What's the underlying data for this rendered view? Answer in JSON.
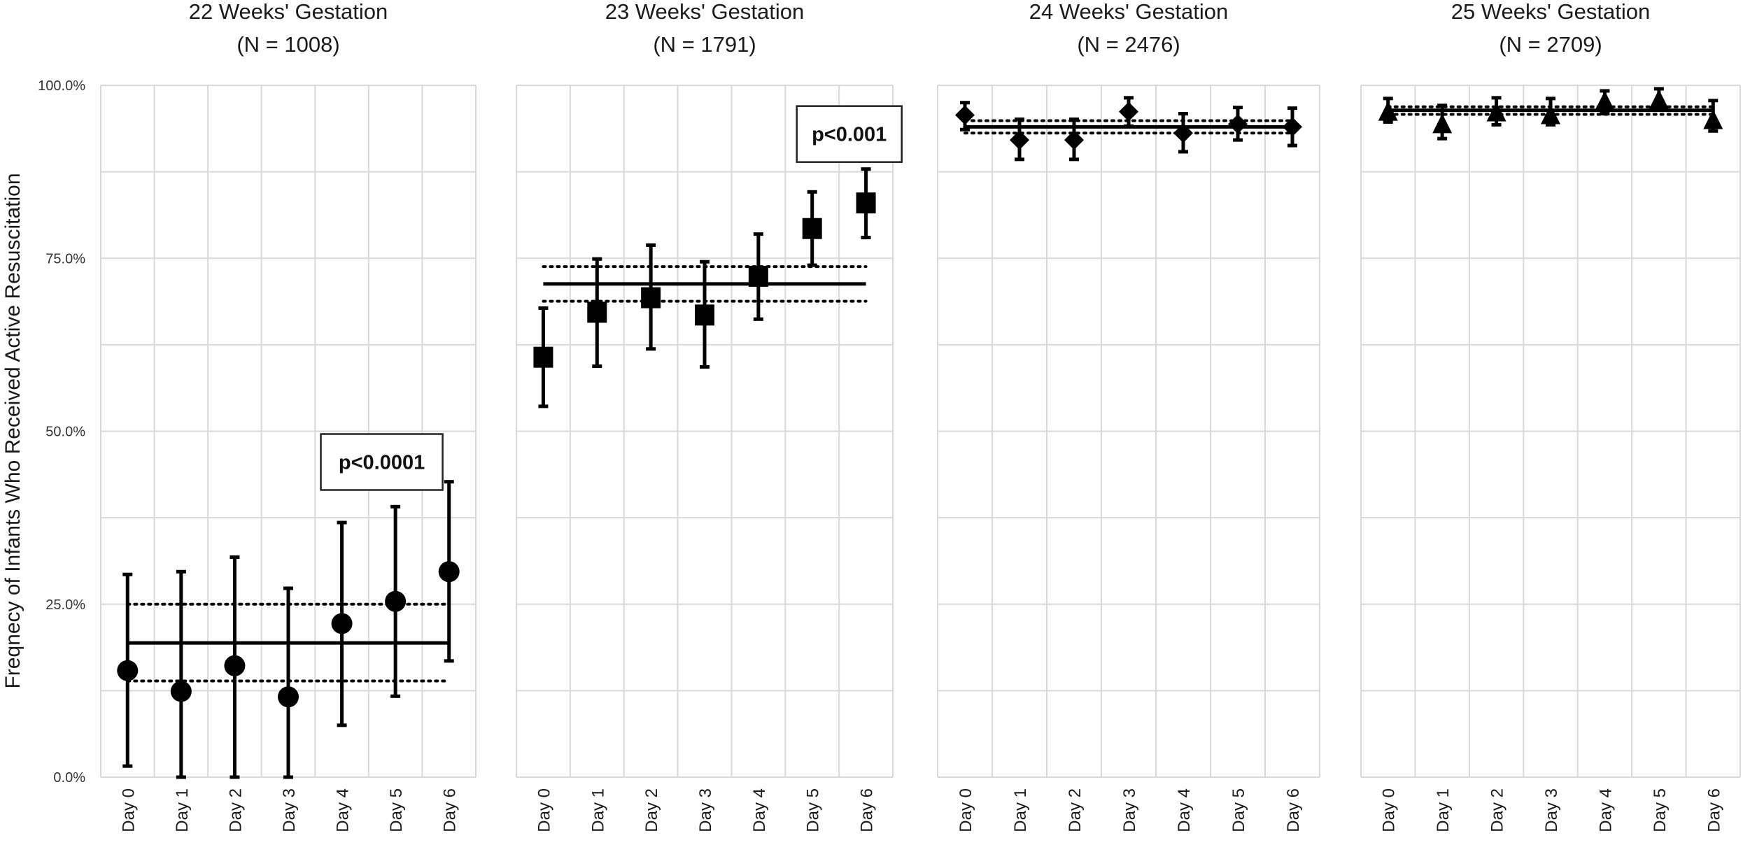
{
  "chart_data": {
    "type": "scatter",
    "description": "Point estimates with 95% CI error bars per day; solid line = overall mean, dotted lines = CI of mean",
    "ylabel": "Freqnecy of Infants Who Received Active Resuscitation",
    "ylim": [
      0,
      100
    ],
    "yticks": [
      "0.0%",
      "25.0%",
      "50.0%",
      "75.0%",
      "100.0%"
    ],
    "ytick_values": [
      0,
      25,
      50,
      75,
      100
    ],
    "minor_gridlines_step": 12.5,
    "grid": true,
    "categories": [
      "Day 0",
      "Day 1",
      "Day 2",
      "Day 3",
      "Day 4",
      "Day 5",
      "Day 6"
    ],
    "panels": [
      {
        "title": "22 Weeks' Gestation",
        "subtitle": "(N = 1008)",
        "marker": "circle",
        "values": [
          15.4,
          12.4,
          16.1,
          11.6,
          22.2,
          25.4,
          29.7
        ],
        "ci_low": [
          1.6,
          0.0,
          0.0,
          0.0,
          7.5,
          11.7,
          16.8
        ],
        "ci_high": [
          29.3,
          29.7,
          31.8,
          27.3,
          36.8,
          39.1,
          42.7
        ],
        "mean": 19.4,
        "mean_ci_low": 13.9,
        "mean_ci_high": 25.0,
        "annotation": "p<0.0001"
      },
      {
        "title": "23 Weeks' Gestation",
        "subtitle": "(N = 1791)",
        "marker": "square",
        "values": [
          60.7,
          67.2,
          69.3,
          66.8,
          72.4,
          79.3,
          83.0
        ],
        "ci_low": [
          53.6,
          59.4,
          61.9,
          59.3,
          66.2,
          74.0,
          78.0
        ],
        "ci_high": [
          67.8,
          74.9,
          76.9,
          74.5,
          78.5,
          84.6,
          87.9
        ],
        "mean": 71.3,
        "mean_ci_low": 68.8,
        "mean_ci_high": 73.8,
        "annotation": "p<0.001"
      },
      {
        "title": "24 Weeks' Gestation",
        "subtitle": "(N = 2476)",
        "marker": "diamond",
        "values": [
          95.7,
          92.1,
          92.1,
          96.2,
          93.1,
          94.4,
          94.0
        ],
        "ci_low": [
          93.6,
          89.3,
          89.3,
          94.1,
          90.4,
          92.1,
          91.3
        ],
        "ci_high": [
          97.5,
          95.1,
          95.1,
          98.2,
          95.9,
          96.8,
          96.7
        ],
        "mean": 94.0,
        "mean_ci_low": 93.1,
        "mean_ci_high": 94.9,
        "annotation": ""
      },
      {
        "title": "25 Weeks' Gestation",
        "subtitle": "(N = 2709)",
        "marker": "triangle",
        "values": [
          96.1,
          94.3,
          96.0,
          95.6,
          97.6,
          97.8,
          94.9
        ],
        "ci_low": [
          94.7,
          92.3,
          94.3,
          94.3,
          95.9,
          96.6,
          93.4
        ],
        "ci_high": [
          98.1,
          97.1,
          98.2,
          98.1,
          99.2,
          99.5,
          97.8
        ],
        "mean": 96.4,
        "mean_ci_low": 95.8,
        "mean_ci_high": 96.9,
        "annotation": ""
      }
    ]
  },
  "colors": {
    "marker": "#000000",
    "grid": "#d9d9d9",
    "text": "#1a1a1a"
  }
}
